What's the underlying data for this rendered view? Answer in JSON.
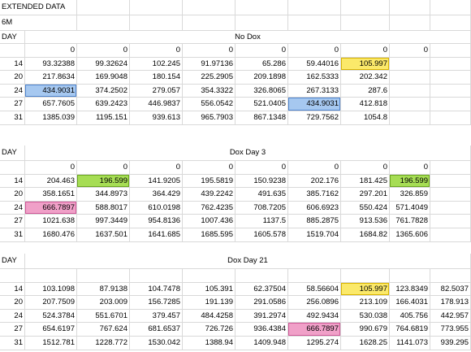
{
  "title": "EXTENDED DATA",
  "subtitle": "6M",
  "sections": [
    {
      "day_label": "DAY",
      "title": "No Dox",
      "zeros": [
        "0",
        "0",
        "0",
        "0",
        "0",
        "0",
        "0",
        "0"
      ],
      "rows": [
        {
          "day": "14",
          "values": [
            "93.32388",
            "99.32624",
            "102.245",
            "91.97136",
            "65.286",
            "59.44016",
            "105.997",
            ""
          ]
        },
        {
          "day": "20",
          "values": [
            "217.8634",
            "169.9048",
            "180.154",
            "225.2905",
            "209.1898",
            "162.5333",
            "202.342",
            ""
          ]
        },
        {
          "day": "24",
          "values": [
            "434.9031",
            "374.2502",
            "279.057",
            "354.3322",
            "326.8065",
            "267.3133",
            "287.6",
            ""
          ]
        },
        {
          "day": "27",
          "values": [
            "657.7605",
            "639.2423",
            "446.9837",
            "556.0542",
            "521.0405",
            "434.9031",
            "412.818",
            ""
          ]
        },
        {
          "day": "31",
          "values": [
            "1385.039",
            "1195.151",
            "939.613",
            "965.7903",
            "867.1348",
            "729.7562",
            "1054.8",
            ""
          ]
        }
      ]
    },
    {
      "day_label": "DAY",
      "title": "Dox Day 3",
      "zeros": [
        "0",
        "0",
        "0",
        "0",
        "0",
        "0",
        "0",
        "0"
      ],
      "rows": [
        {
          "day": "14",
          "values": [
            "204.463",
            "196.599",
            "141.9205",
            "195.5819",
            "150.9238",
            "202.176",
            "181.425",
            "196.599"
          ]
        },
        {
          "day": "20",
          "values": [
            "358.1651",
            "344.8973",
            "364.429",
            "439.2242",
            "491.635",
            "385.7162",
            "297.201",
            "326.859"
          ]
        },
        {
          "day": "24",
          "values": [
            "666.7897",
            "588.8017",
            "610.0198",
            "762.4235",
            "708.7205",
            "606.6923",
            "550.424",
            "571.4049"
          ]
        },
        {
          "day": "27",
          "values": [
            "1021.638",
            "997.3449",
            "954.8136",
            "1007.436",
            "1137.5",
            "885.2875",
            "913.536",
            "761.7828"
          ]
        },
        {
          "day": "31",
          "values": [
            "1680.476",
            "1637.501",
            "1641.685",
            "1685.595",
            "1605.578",
            "1519.704",
            "1684.82",
            "1365.606"
          ]
        }
      ]
    },
    {
      "day_label": "DAY",
      "title": "Dox Day 21",
      "zeros": [],
      "rows": [
        {
          "day": "14",
          "values": [
            "103.1098",
            "87.9138",
            "104.7478",
            "105.391",
            "62.37504",
            "58.56604",
            "105.997",
            "123.8349",
            "82.5037"
          ]
        },
        {
          "day": "20",
          "values": [
            "207.7509",
            "203.009",
            "156.7285",
            "191.139",
            "291.0586",
            "256.0896",
            "213.109",
            "166.4031",
            "178.913"
          ]
        },
        {
          "day": "24",
          "values": [
            "524.3784",
            "551.6701",
            "379.457",
            "484.4258",
            "391.2974",
            "492.9434",
            "530.038",
            "405.756",
            "442.957"
          ]
        },
        {
          "day": "27",
          "values": [
            "654.6197",
            "767.624",
            "681.6537",
            "726.726",
            "936.4384",
            "666.7897",
            "990.679",
            "764.6819",
            "773.955"
          ]
        },
        {
          "day": "31",
          "values": [
            "1512.781",
            "1228.772",
            "1530.042",
            "1388.94",
            "1409.948",
            "1295.274",
            "1628.25",
            "1141.073",
            "939.295"
          ]
        }
      ]
    }
  ],
  "highlights": {
    "yellow": "#fbe96a",
    "green": "#a6dd54",
    "blue": "#a6c8f0",
    "pink": "#f0a0c8"
  }
}
